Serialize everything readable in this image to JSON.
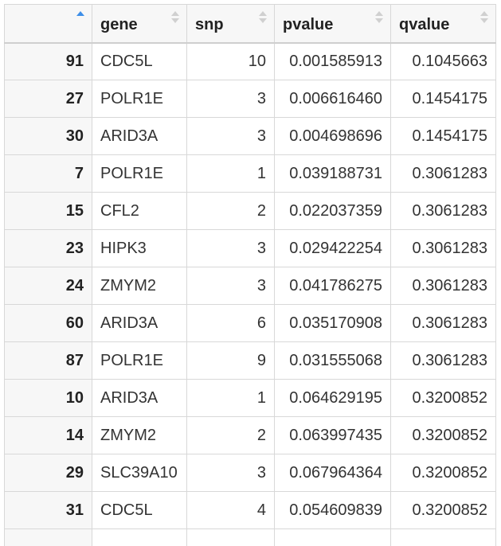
{
  "table": {
    "columns": [
      {
        "key": "index",
        "label": "",
        "sort_state": "ascending"
      },
      {
        "key": "gene",
        "label": "gene",
        "sort_state": "none"
      },
      {
        "key": "snp",
        "label": "snp",
        "sort_state": "none"
      },
      {
        "key": "pvalue",
        "label": "pvalue",
        "sort_state": "none"
      },
      {
        "key": "qvalue",
        "label": "qvalue",
        "sort_state": "none"
      }
    ],
    "rows": [
      {
        "index": "91",
        "gene": "CDC5L",
        "snp": "10",
        "pvalue": "0.001585913",
        "qvalue": "0.1045663"
      },
      {
        "index": "27",
        "gene": "POLR1E",
        "snp": "3",
        "pvalue": "0.006616460",
        "qvalue": "0.1454175"
      },
      {
        "index": "30",
        "gene": "ARID3A",
        "snp": "3",
        "pvalue": "0.004698696",
        "qvalue": "0.1454175"
      },
      {
        "index": "7",
        "gene": "POLR1E",
        "snp": "1",
        "pvalue": "0.039188731",
        "qvalue": "0.3061283"
      },
      {
        "index": "15",
        "gene": "CFL2",
        "snp": "2",
        "pvalue": "0.022037359",
        "qvalue": "0.3061283"
      },
      {
        "index": "23",
        "gene": "HIPK3",
        "snp": "3",
        "pvalue": "0.029422254",
        "qvalue": "0.3061283"
      },
      {
        "index": "24",
        "gene": "ZMYM2",
        "snp": "3",
        "pvalue": "0.041786275",
        "qvalue": "0.3061283"
      },
      {
        "index": "60",
        "gene": "ARID3A",
        "snp": "6",
        "pvalue": "0.035170908",
        "qvalue": "0.3061283"
      },
      {
        "index": "87",
        "gene": "POLR1E",
        "snp": "9",
        "pvalue": "0.031555068",
        "qvalue": "0.3061283"
      },
      {
        "index": "10",
        "gene": "ARID3A",
        "snp": "1",
        "pvalue": "0.064629195",
        "qvalue": "0.3200852"
      },
      {
        "index": "14",
        "gene": "ZMYM2",
        "snp": "2",
        "pvalue": "0.063997435",
        "qvalue": "0.3200852"
      },
      {
        "index": "29",
        "gene": "SLC39A10",
        "snp": "3",
        "pvalue": "0.067964364",
        "qvalue": "0.3200852"
      },
      {
        "index": "31",
        "gene": "CDC5L",
        "snp": "4",
        "pvalue": "0.054609839",
        "qvalue": "0.3200852"
      },
      {
        "index": "",
        "gene": "",
        "snp": "",
        "pvalue": "",
        "qvalue": ""
      }
    ]
  },
  "colors": {
    "sort_active": "#3d8ee8",
    "sort_inactive": "#d0d0d0",
    "header_bg": "#f7f7f7",
    "border": "#d8d8d8"
  },
  "icons": {
    "sort_active": "sort-ascending-icon",
    "sort_inactive": "sort-icon"
  }
}
